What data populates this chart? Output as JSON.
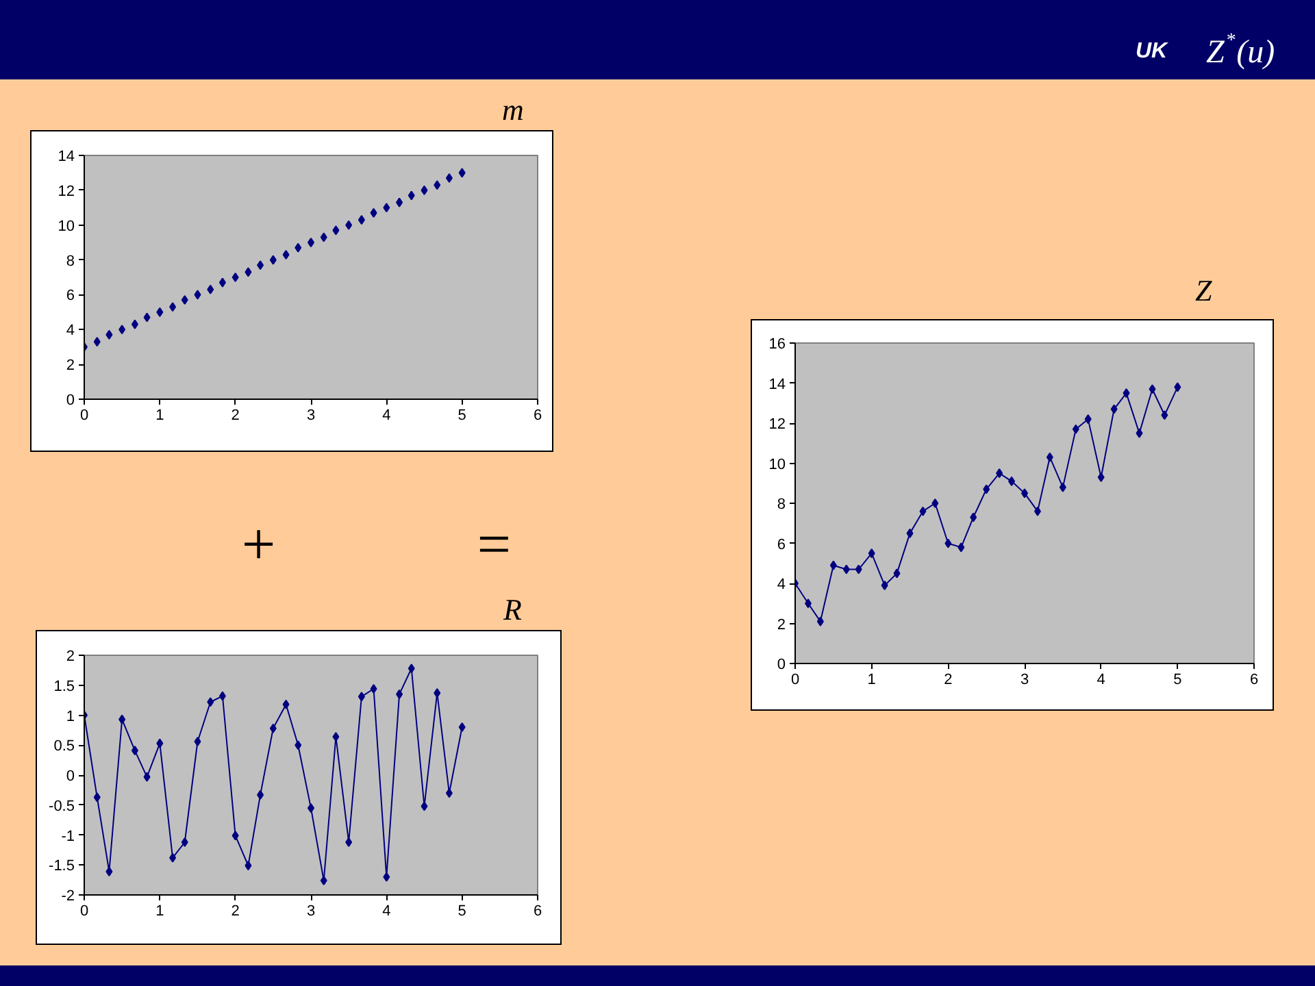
{
  "chart_data": [
    {
      "type": "other",
      "title": "UK",
      "annotations": [
        "Z$^{*}$(u)"
      ]
    },
    {
      "type": "scatter",
      "title": "m",
      "x": [
        0,
        0.17,
        0.33,
        0.5,
        0.67,
        0.83,
        1,
        1.17,
        1.33,
        1.5,
        1.67,
        1.83,
        2,
        2.17,
        2.33,
        2.5,
        2.67,
        2.83,
        3,
        3.17,
        3.33,
        3.5,
        3.67,
        3.83,
        4,
        4.17,
        4.33,
        4.5,
        4.67,
        4.83,
        5
      ],
      "values": [
        3.0,
        3.3,
        3.7,
        4.0,
        4.3,
        4.7,
        5.0,
        5.3,
        5.7,
        6.0,
        6.3,
        6.7,
        7.0,
        7.3,
        7.7,
        8.0,
        8.3,
        8.7,
        9.0,
        9.3,
        9.7,
        10.0,
        10.3,
        10.7,
        11.0,
        11.3,
        11.7,
        12.0,
        12.3,
        12.7,
        13.0
      ],
      "color": "#000080",
      "marker": "diamond",
      "xlim": [
        0,
        6
      ],
      "xticks": [
        0,
        1,
        2,
        3,
        4,
        5,
        6
      ],
      "ylim": [
        0,
        14
      ],
      "yticks": [
        0,
        2,
        4,
        6,
        8,
        10,
        12,
        14
      ]
    },
    {
      "type": "other",
      "annotations": [
        "+",
        "="
      ]
    },
    {
      "type": "line",
      "title": "R",
      "x": [
        0,
        0.17,
        0.33,
        0.5,
        0.67,
        0.83,
        1,
        1.17,
        1.33,
        1.5,
        1.67,
        1.83,
        2,
        2.17,
        2.33,
        2.5,
        2.67,
        2.83,
        3,
        3.17,
        3.33,
        3.5,
        3.67,
        3.83,
        4,
        4.17,
        4.33,
        4.5,
        4.67,
        4.83,
        5
      ],
      "values": [
        1.0,
        -0.37,
        -1.61,
        0.93,
        0.41,
        -0.03,
        0.53,
        -1.38,
        -1.12,
        0.56,
        1.22,
        1.32,
        -1.01,
        -1.51,
        -0.33,
        0.78,
        1.18,
        0.5,
        -0.55,
        -1.76,
        0.64,
        -1.12,
        1.31,
        1.44,
        -1.7,
        1.35,
        1.78,
        -0.52,
        1.37,
        -0.3,
        0.8
      ],
      "color": "#000080",
      "marker": "diamond",
      "xlim": [
        0,
        6
      ],
      "xticks": [
        0,
        1,
        2,
        3,
        4,
        5,
        6
      ],
      "ylim": [
        -2,
        2
      ],
      "yticks": [
        -2,
        -1.5,
        -1,
        -0.5,
        0,
        0.5,
        1,
        1.5,
        2
      ]
    },
    {
      "type": "line",
      "title": "Z",
      "x": [
        0,
        0.17,
        0.33,
        0.5,
        0.67,
        0.83,
        1,
        1.17,
        1.33,
        1.5,
        1.67,
        1.83,
        2,
        2.17,
        2.33,
        2.5,
        2.67,
        2.83,
        3,
        3.17,
        3.33,
        3.5,
        3.67,
        3.83,
        4,
        4.17,
        4.33,
        4.5,
        4.67,
        4.83,
        5
      ],
      "values": [
        4.0,
        3.0,
        2.1,
        4.9,
        4.7,
        4.7,
        5.5,
        3.9,
        4.5,
        6.5,
        7.6,
        8.0,
        6.0,
        5.8,
        7.3,
        8.7,
        9.5,
        9.1,
        8.5,
        7.6,
        10.3,
        8.8,
        11.7,
        12.2,
        9.3,
        12.7,
        13.5,
        11.5,
        13.7,
        12.4,
        13.8
      ],
      "color": "#000080",
      "marker": "diamond",
      "xlim": [
        0,
        6
      ],
      "xticks": [
        0,
        1,
        2,
        3,
        4,
        5,
        6
      ],
      "ylim": [
        0,
        16
      ],
      "yticks": [
        0,
        2,
        4,
        6,
        8,
        10,
        12,
        14,
        16
      ]
    }
  ]
}
